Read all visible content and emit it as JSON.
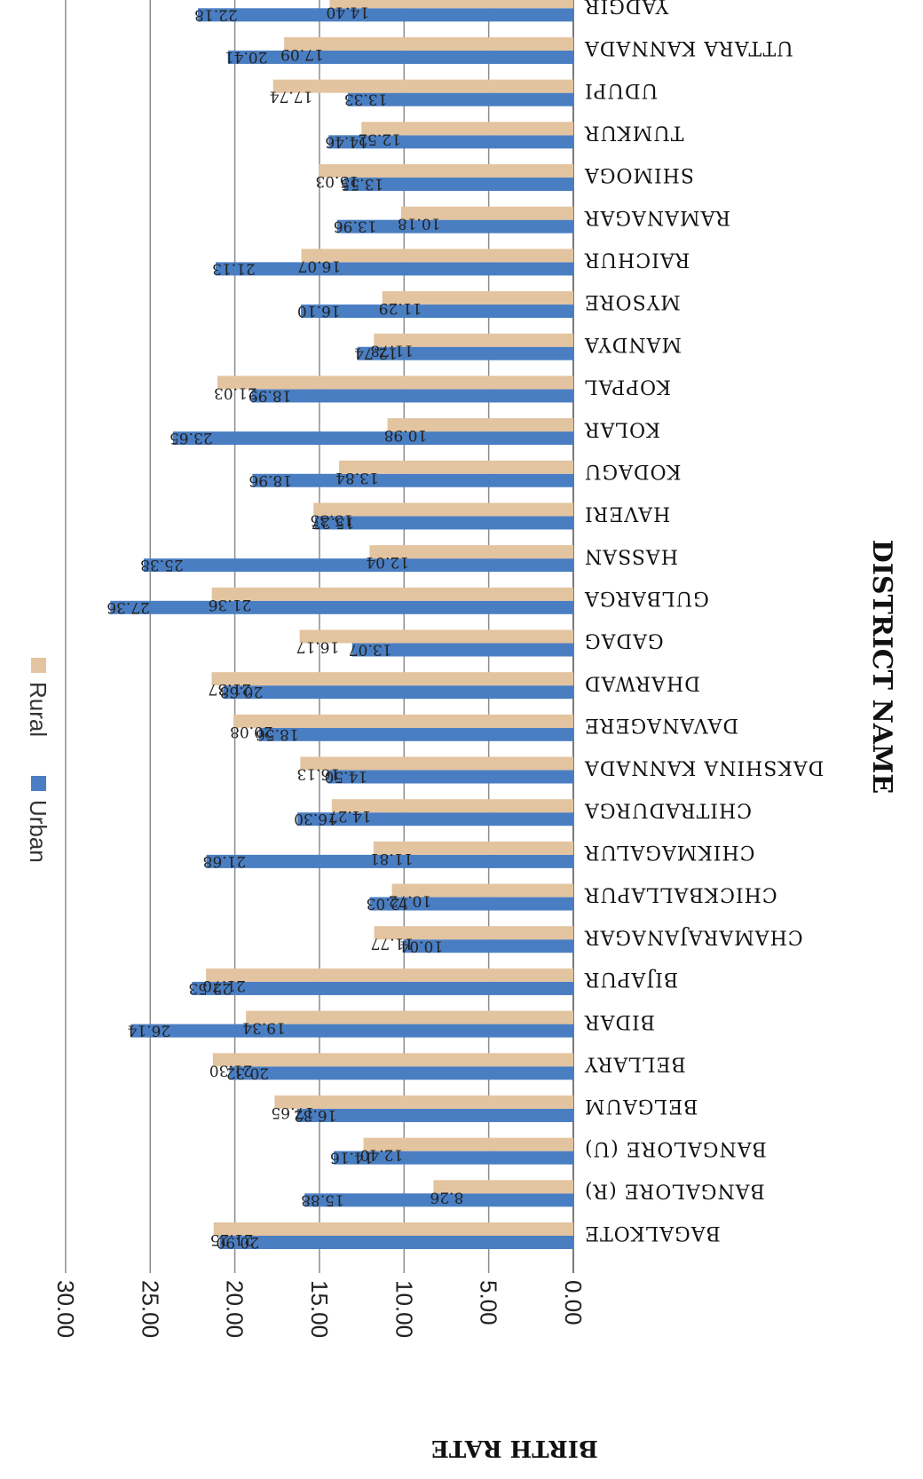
{
  "chart_data": {
    "type": "bar",
    "orientation": "horizontal",
    "rotated": "180deg (image shown upside down)",
    "xlabel": "BIRTH RATE",
    "ylabel": "DISTRICT NAME",
    "xlim": [
      0,
      30
    ],
    "x_ticks": [
      "0.00",
      "5.00",
      "10.00",
      "15.00",
      "20.00",
      "25.00",
      "30.00"
    ],
    "grid": true,
    "legend_position": "top",
    "categories": [
      "BAGALKOTE",
      "BANGALORE (R)",
      "BANGALORE (U)",
      "BELGAUM",
      "BELLARY",
      "BIDAR",
      "BIJAPUR",
      "CHAMARAJANAGAR",
      "CHICKBALLAPUR",
      "CHIKMAGALUR",
      "CHITRADURGA",
      "DAKSHINA KANNADA",
      "DAVANAGERE",
      "DHARWAD",
      "GADAG",
      "GULBARGA",
      "HASSAN",
      "HAVERI",
      "KODAGU",
      "KOLAR",
      "KOPPAL",
      "MANDYA",
      "MYSORE",
      "RAICHUR",
      "RAMANAGAR",
      "SHIMOGA",
      "TUMKUR",
      "UDUPI",
      "UTTARA KANNADA",
      "YADGIR"
    ],
    "series": [
      {
        "name": "Urban",
        "color": "#4A7EC2",
        "values": [
          20.9,
          15.88,
          14.16,
          16.32,
          20.32,
          26.14,
          22.53,
          10.04,
          12.03,
          21.68,
          16.3,
          14.5,
          18.56,
          20.68,
          13.07,
          27.36,
          25.38,
          15.27,
          18.96,
          23.65,
          18.99,
          12.74,
          16.1,
          21.13,
          13.96,
          13.55,
          14.46,
          13.33,
          20.41,
          22.18
        ],
        "labels": [
          "20.90",
          "15.88",
          "14.16",
          "16.32",
          "20.32",
          "26.14",
          "22.53",
          "10.04",
          "12.03",
          "21.68",
          "16.30",
          "14.50",
          "18.56",
          "20.68",
          "13.07",
          "27.36",
          "25.38",
          "15.27",
          "18.96",
          "23.65",
          "18.99",
          "12.74",
          "16.10",
          "21.13",
          "13.96",
          "13.55",
          "14.46",
          "13.33",
          "20.41",
          "22.18"
        ]
      },
      {
        "name": "Rural",
        "color": "#E3C4A0",
        "values": [
          21.25,
          8.26,
          12.4,
          17.65,
          21.3,
          19.34,
          21.7,
          11.77,
          10.72,
          11.81,
          14.27,
          16.13,
          20.08,
          21.37,
          16.17,
          21.36,
          12.04,
          15.35,
          13.84,
          10.98,
          21.03,
          11.78,
          11.29,
          16.07,
          10.18,
          15.03,
          12.52,
          17.74,
          17.09,
          14.4
        ],
        "labels": [
          "21.25",
          "8.26",
          "12.40",
          "17.65",
          "21.30",
          "19.34",
          "21.70",
          "11.77",
          "10.72",
          "11.81",
          "14.27",
          "16.13",
          "20.08",
          "21.37",
          "16.17",
          "21.36",
          "12.04",
          "15.35",
          "13.84",
          "10.98",
          "21.03",
          "11.78",
          "11.29",
          "16.07",
          "10.18",
          "15.03",
          "12.52",
          "17.74",
          "17.09",
          "14.40"
        ]
      }
    ]
  }
}
